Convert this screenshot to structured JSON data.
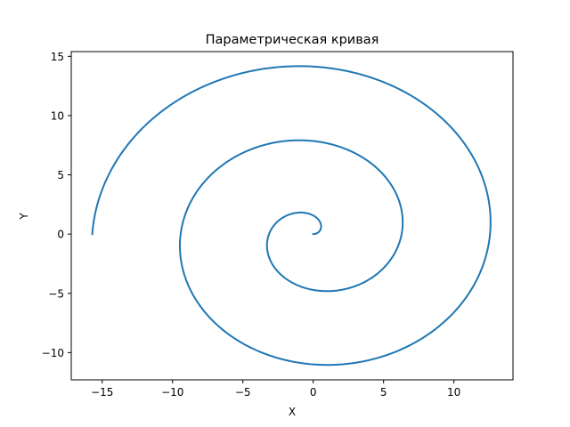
{
  "chart_data": {
    "type": "line",
    "title": "Параметрическая кривая",
    "xlabel": "X",
    "ylabel": "Y",
    "xlim": [
      -17.2,
      14.2
    ],
    "ylim": [
      -12.3,
      15.4
    ],
    "x_ticks": [
      -15,
      -10,
      -5,
      0,
      5,
      10
    ],
    "y_ticks": [
      -10,
      -5,
      0,
      5,
      10,
      15
    ],
    "x_tick_labels": [
      "−15",
      "−10",
      "−5",
      "0",
      "5",
      "10"
    ],
    "y_tick_labels": [
      "−10",
      "−5",
      "0",
      "5",
      "10",
      "15"
    ],
    "grid": false,
    "legend": "none",
    "series": [
      {
        "color": "#1f77b4",
        "equation": "x = t·cos(t), y = t·sin(t)",
        "t_range": [
          0,
          15.708
        ],
        "points": [
          [
            0,
            0
          ],
          [
            0.48,
            0.26
          ],
          [
            0.54,
            0.84
          ],
          [
            0.07,
            1.5
          ],
          [
            -0.83,
            1.82
          ],
          [
            -1.96,
            1.5
          ],
          [
            -2.97,
            0.42
          ],
          [
            -3.38,
            -1.16
          ],
          [
            -2.95,
            -2.8
          ],
          [
            -1.54,
            -4.13
          ],
          [
            0,
            -4.71
          ],
          [
            1.82,
            -4.54
          ],
          [
            3.65,
            -3.33
          ],
          [
            5.01,
            -1.42
          ],
          [
            6.02,
            0.97
          ],
          [
            6.28,
            3.0
          ],
          [
            5.71,
            4.79
          ],
          [
            4.28,
            6.38
          ],
          [
            2.34,
            7.55
          ],
          [
            0,
            7.85
          ],
          [
            -2.94,
            7.42
          ],
          [
            -5.77,
            6.23
          ],
          [
            -7.98,
            4.15
          ],
          [
            -9.13,
            1.07
          ],
          [
            -9.37,
            -1.69
          ],
          [
            -8.8,
            -4.47
          ],
          [
            -6.89,
            -7.03
          ],
          [
            -4.05,
            -8.83
          ],
          [
            -1.09,
            -10.93
          ],
          [
            1.72,
            -10.92
          ],
          [
            4.35,
            -10.05
          ],
          [
            7.71,
            -7.98
          ],
          [
            10.45,
            -5.74
          ],
          [
            11.85,
            -3.31
          ],
          [
            12.57,
            0.08
          ],
          [
            12.55,
            2.86
          ],
          [
            11.81,
            5.99
          ],
          [
            10.32,
            8.63
          ],
          [
            7.95,
            11.08
          ],
          [
            4.86,
            13.03
          ],
          [
            1.17,
            14.06
          ],
          [
            -1.04,
            14.06
          ],
          [
            -4.43,
            13.45
          ],
          [
            -8.29,
            11.84
          ],
          [
            -11.3,
            9.33
          ],
          [
            -13.71,
            6.33
          ],
          [
            -15.21,
            3.44
          ],
          [
            -15.71,
            0
          ]
        ]
      }
    ]
  }
}
